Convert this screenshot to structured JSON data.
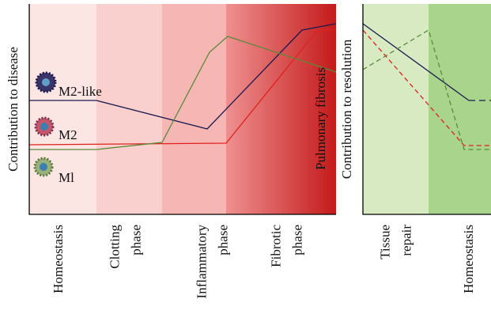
{
  "left_panel": {
    "y_label": "Contribution to disease",
    "overlay_label": "Pulmonary fibrosis",
    "cells": [
      "M2-like",
      "M2",
      "Ml"
    ],
    "phases": [
      [
        "Homeostasis"
      ],
      [
        "Clotting",
        "phase"
      ],
      [
        "Inflammatory",
        "phase"
      ],
      [
        "Fibrotic",
        "phase"
      ]
    ]
  },
  "right_panel": {
    "y_label": "Contribution to resolution",
    "phases": [
      [
        "Tissue",
        "repair"
      ],
      [
        "Homeostasis"
      ]
    ]
  }
}
